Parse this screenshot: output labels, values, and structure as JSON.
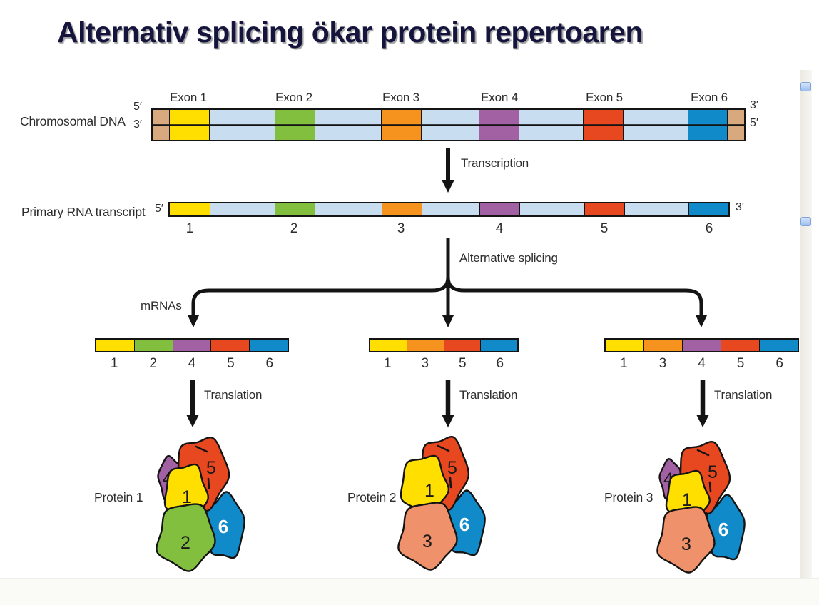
{
  "title": {
    "text": "Alternativ splicing ökar protein repertoaren",
    "color": "#14143c"
  },
  "colors": {
    "exon_yellow": "#ffdf00",
    "exon_green": "#82bf3e",
    "exon_orange": "#f6921e",
    "exon_purple": "#a261a3",
    "exon_red": "#e8481f",
    "exon_blue": "#118ac9",
    "intron": "#c9ddf1",
    "dna_end": "#d8a87f",
    "protein_salmon": "#ef916b",
    "outline": "#141414",
    "scroll_thumb": "#9cbef0"
  },
  "dna": {
    "label": "Chromosomal DNA",
    "five_prime_left": "5′",
    "three_prime_left": "3′",
    "three_prime_right": "3′",
    "five_prime_right": "5′",
    "exons": [
      "Exon 1",
      "Exon 2",
      "Exon 3",
      "Exon 4",
      "Exon 5",
      "Exon 6"
    ]
  },
  "transcription": {
    "label": "Transcription"
  },
  "primary": {
    "label": "Primary RNA transcript",
    "five_prime": "5′",
    "three_prime": "3′",
    "numbers": [
      "1",
      "2",
      "3",
      "4",
      "5",
      "6"
    ]
  },
  "splicing": {
    "label": "Alternative splicing",
    "mrnas_label": "mRNAs"
  },
  "mrnas": [
    {
      "numbers": [
        "1",
        "2",
        "4",
        "5",
        "6"
      ]
    },
    {
      "numbers": [
        "1",
        "3",
        "5",
        "6"
      ]
    },
    {
      "numbers": [
        "1",
        "3",
        "4",
        "5",
        "6"
      ]
    }
  ],
  "translation": {
    "label": "Translation"
  },
  "proteins": [
    {
      "label": "Protein 1",
      "domains": [
        {
          "n": "4",
          "color": "exon_purple"
        },
        {
          "n": "6",
          "color": "exon_blue"
        },
        {
          "n": "5",
          "color": "exon_red"
        },
        {
          "n": "1",
          "color": "exon_yellow"
        },
        {
          "n": "2",
          "color": "exon_green"
        }
      ]
    },
    {
      "label": "Protein 2",
      "domains": [
        {
          "n": "6",
          "color": "exon_blue"
        },
        {
          "n": "5",
          "color": "exon_red"
        },
        {
          "n": "1",
          "color": "exon_yellow"
        },
        {
          "n": "3",
          "color": "protein_salmon"
        }
      ]
    },
    {
      "label": "Protein 3",
      "domains": [
        {
          "n": "4",
          "color": "exon_purple"
        },
        {
          "n": "6",
          "color": "exon_blue"
        },
        {
          "n": "5",
          "color": "exon_red"
        },
        {
          "n": "1",
          "color": "exon_yellow"
        },
        {
          "n": "3",
          "color": "protein_salmon"
        }
      ]
    }
  ]
}
